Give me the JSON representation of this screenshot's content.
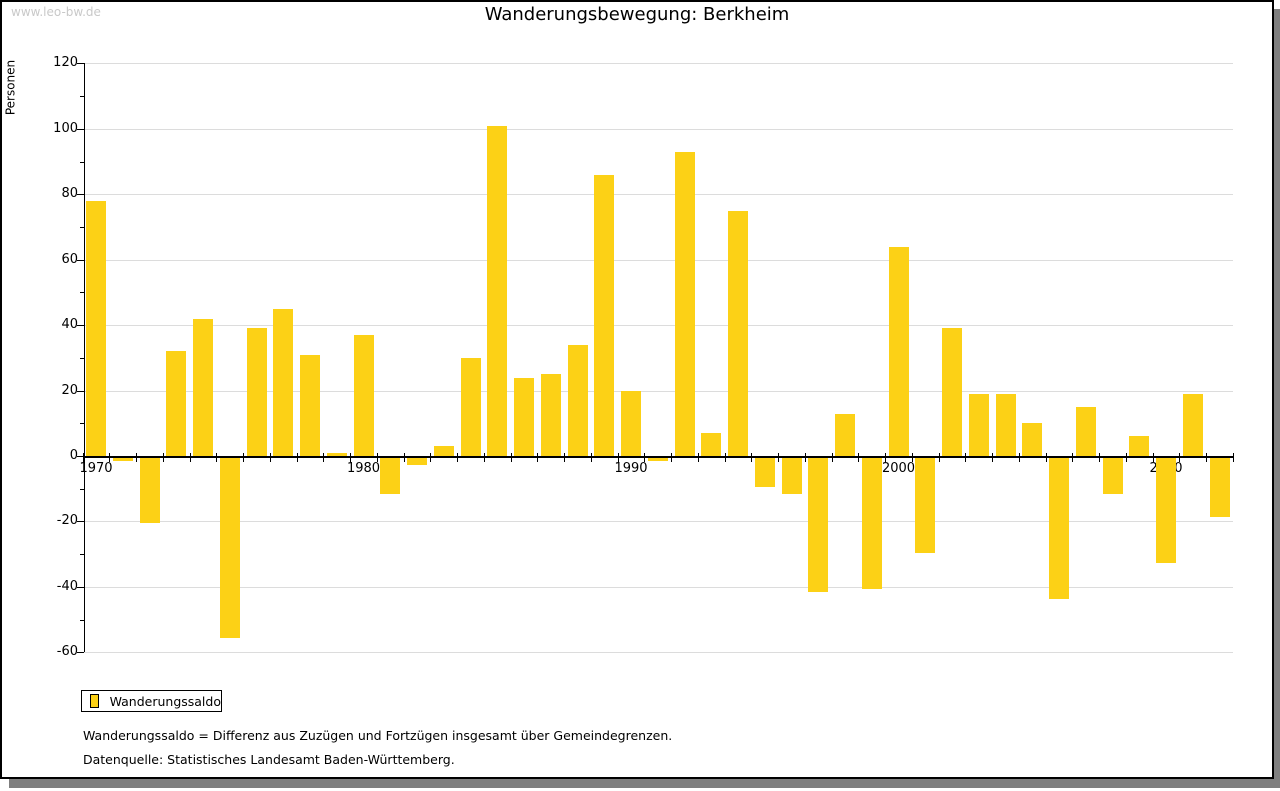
{
  "watermark": "www.leo-bw.de",
  "header": {
    "title": "Wanderungsbewegung: Berkheim"
  },
  "colors": {
    "bar": "#FCD116",
    "grid": "#DCDCDC",
    "axis": "#000000",
    "text": "#000000",
    "watermark": "#C9C9C9",
    "frame_shadow": "#7F7F7F"
  },
  "legend": {
    "label": "Wanderungssaldo"
  },
  "footnotes": {
    "definition": "Wanderungssaldo = Differenz aus Zuzügen und Fortzügen insgesamt über Gemeindegrenzen.",
    "source": "Datenquelle: Statistisches Landesamt Baden-Württemberg."
  },
  "chart_data": {
    "type": "bar",
    "title": "Wanderungsbewegung: Berkheim",
    "xlabel": "",
    "ylabel": "Personen",
    "ylim": [
      -60,
      120
    ],
    "ytick_step": 20,
    "yminor_tick_step": 10,
    "grid": true,
    "legend_position": "bottom-left",
    "series_name": "Wanderungssaldo",
    "ytick_labels": [
      "120",
      "100",
      "80",
      "60",
      "40",
      "20",
      "0",
      "-20",
      "-40",
      "-60"
    ],
    "xtick_labels": [
      "1970",
      "1980",
      "1990",
      "2000",
      "2010"
    ],
    "years": [
      1970,
      1971,
      1972,
      1973,
      1974,
      1975,
      1976,
      1977,
      1978,
      1979,
      1980,
      1981,
      1982,
      1983,
      1984,
      1985,
      1986,
      1987,
      1988,
      1989,
      1990,
      1991,
      1992,
      1993,
      1994,
      1995,
      1996,
      1997,
      1998,
      1999,
      2000,
      2001,
      2002,
      2003,
      2004,
      2005,
      2006,
      2007,
      2008,
      2009,
      2010,
      2011,
      2012
    ],
    "values": [
      78,
      -1,
      -20,
      32,
      42,
      -55,
      39,
      45,
      31,
      1,
      37,
      -11,
      -2,
      3,
      30,
      101,
      24,
      25,
      34,
      86,
      20,
      -1,
      93,
      7,
      75,
      -9,
      -11,
      -41,
      13,
      -40,
      64,
      -29,
      39,
      19,
      19,
      10,
      -43,
      15,
      -11,
      6,
      -32,
      19,
      -18
    ]
  }
}
